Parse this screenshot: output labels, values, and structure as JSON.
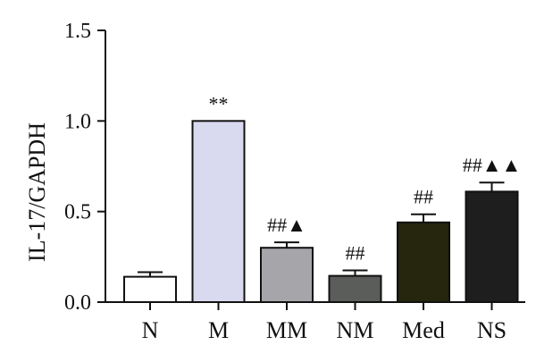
{
  "chart_data": {
    "type": "bar",
    "title": "",
    "xlabel": "",
    "ylabel": "IL-17/GAPDH",
    "ylim": [
      0,
      1.5
    ],
    "yticks": [
      "0.0",
      "0.5",
      "1.0",
      "1.5"
    ],
    "grid": false,
    "legend": "none",
    "categories": [
      "N",
      "M",
      "MM",
      "NM",
      "Med",
      "NS"
    ],
    "values": [
      0.14,
      1.0,
      0.3,
      0.145,
      0.44,
      0.61
    ],
    "errors": [
      0.025,
      0.0,
      0.03,
      0.03,
      0.045,
      0.05
    ],
    "annotations": [
      "",
      "**",
      "##▲",
      "##",
      "##",
      "##▲▲"
    ],
    "colors": [
      "#ffffff",
      "#d9daf0",
      "#a5a5aa",
      "#5b5d5a",
      "#26260f",
      "#1e1e1e"
    ]
  }
}
